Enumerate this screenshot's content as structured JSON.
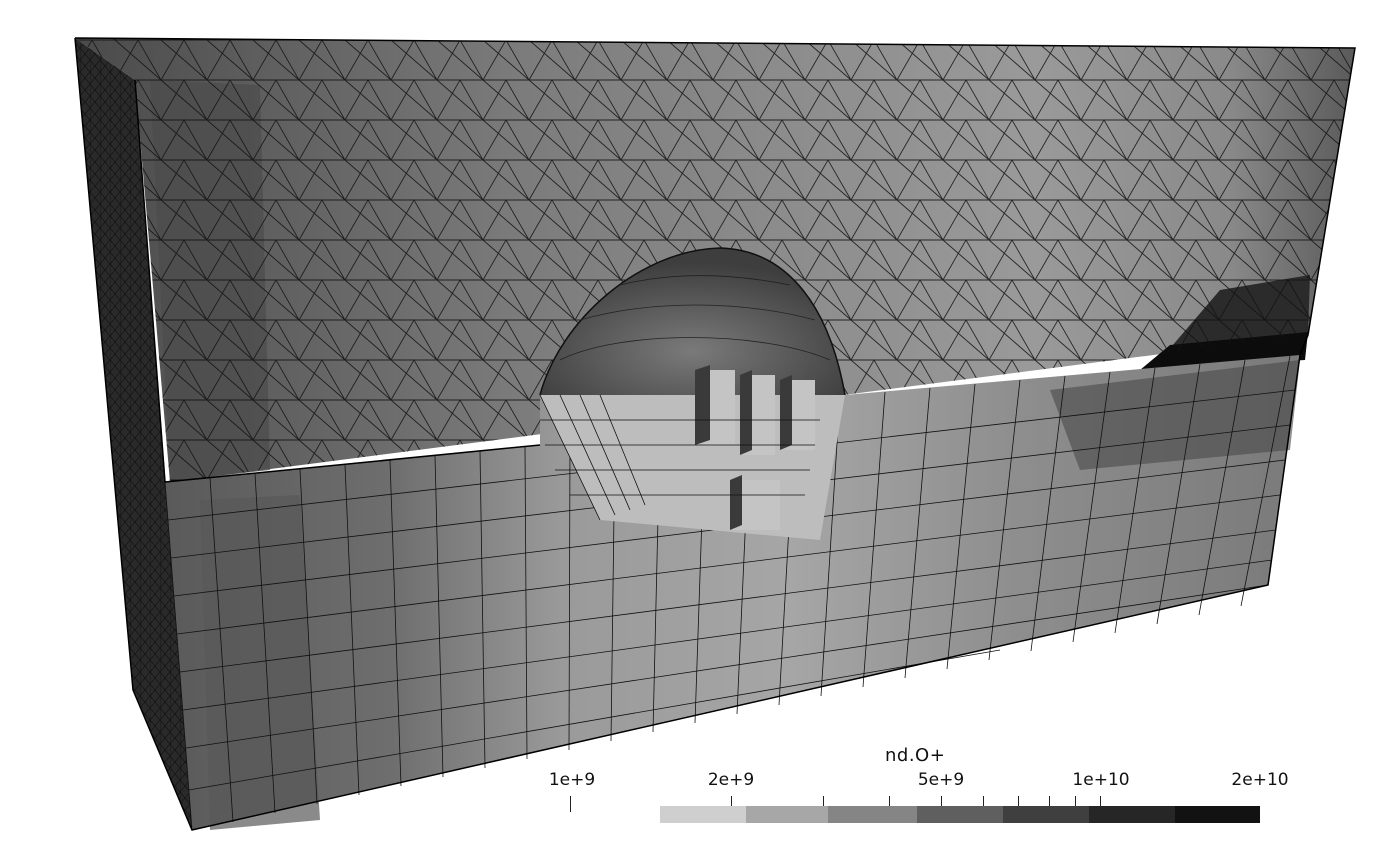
{
  "scalar_bar": {
    "title": "nd.O+",
    "labels": [
      "1e+9",
      "2e+9",
      "5e+9",
      "1e+10",
      "2e+10"
    ],
    "colors": [
      "#cfcfcf",
      "#a7a7a7",
      "#858585",
      "#5f5f5f",
      "#3f3f3f",
      "#262626",
      "#121212",
      "#040404"
    ]
  },
  "scene_colors": {
    "background": "#ffffff",
    "edges": "#000000"
  }
}
